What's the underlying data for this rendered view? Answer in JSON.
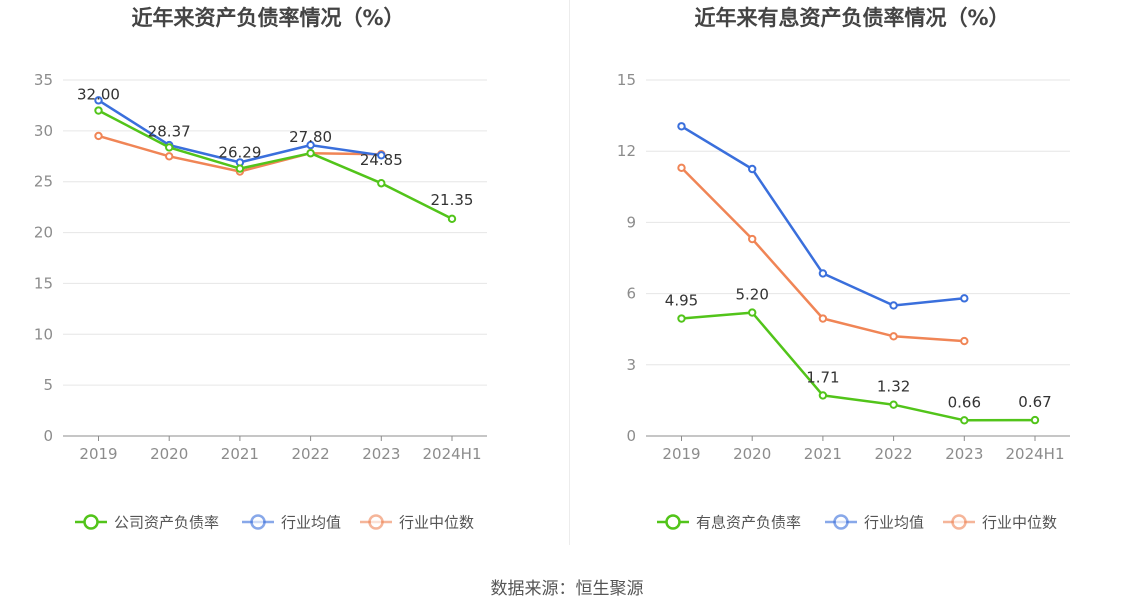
{
  "colors": {
    "company": "#52c41a",
    "average": "#3a6fdc",
    "median": "#f08556",
    "grid": "#e6e6e6",
    "axis": "#8c8c8c",
    "tick_text": "#8c8c8c",
    "label_text": "#333333",
    "title_text": "#444444"
  },
  "source_text": "数据来源：恒生聚源",
  "chart_data": [
    {
      "type": "line",
      "title": "近年来资产负债率情况（%）",
      "categories": [
        "2019",
        "2020",
        "2021",
        "2022",
        "2023",
        "2024H1"
      ],
      "ylim": [
        0,
        35
      ],
      "yticks": [
        0,
        5,
        10,
        15,
        20,
        25,
        30,
        35
      ],
      "xlabel": "",
      "ylabel": "",
      "legend_position": "bottom",
      "series": [
        {
          "key": "company",
          "name": "公司资产负债率",
          "values": [
            32.0,
            28.37,
            26.29,
            27.8,
            24.85,
            21.35
          ],
          "labels": [
            "32.00",
            "28.37",
            "26.29",
            "27.80",
            "24.85",
            "21.35"
          ]
        },
        {
          "key": "average",
          "name": "行业均值",
          "values": [
            33.0,
            28.6,
            26.9,
            28.6,
            27.6,
            null
          ]
        },
        {
          "key": "median",
          "name": "行业中位数",
          "values": [
            29.5,
            27.5,
            26.0,
            27.8,
            27.7,
            null
          ]
        }
      ]
    },
    {
      "type": "line",
      "title": "近年来有息资产负债率情况（%）",
      "categories": [
        "2019",
        "2020",
        "2021",
        "2022",
        "2023",
        "2024H1"
      ],
      "ylim": [
        0,
        15
      ],
      "yticks": [
        0,
        3,
        6,
        9,
        12,
        15
      ],
      "xlabel": "",
      "ylabel": "",
      "legend_position": "bottom",
      "series": [
        {
          "key": "company",
          "name": "有息资产负债率",
          "values": [
            4.95,
            5.2,
            1.71,
            1.32,
            0.66,
            0.67
          ],
          "labels": [
            "4.95",
            "5.20",
            "1.71",
            "1.32",
            "0.66",
            "0.67"
          ]
        },
        {
          "key": "average",
          "name": "行业均值",
          "values": [
            13.05,
            11.25,
            6.85,
            5.5,
            5.8,
            null
          ]
        },
        {
          "key": "median",
          "name": "行业中位数",
          "values": [
            11.3,
            8.3,
            4.95,
            4.2,
            4.0,
            null
          ]
        }
      ]
    }
  ]
}
